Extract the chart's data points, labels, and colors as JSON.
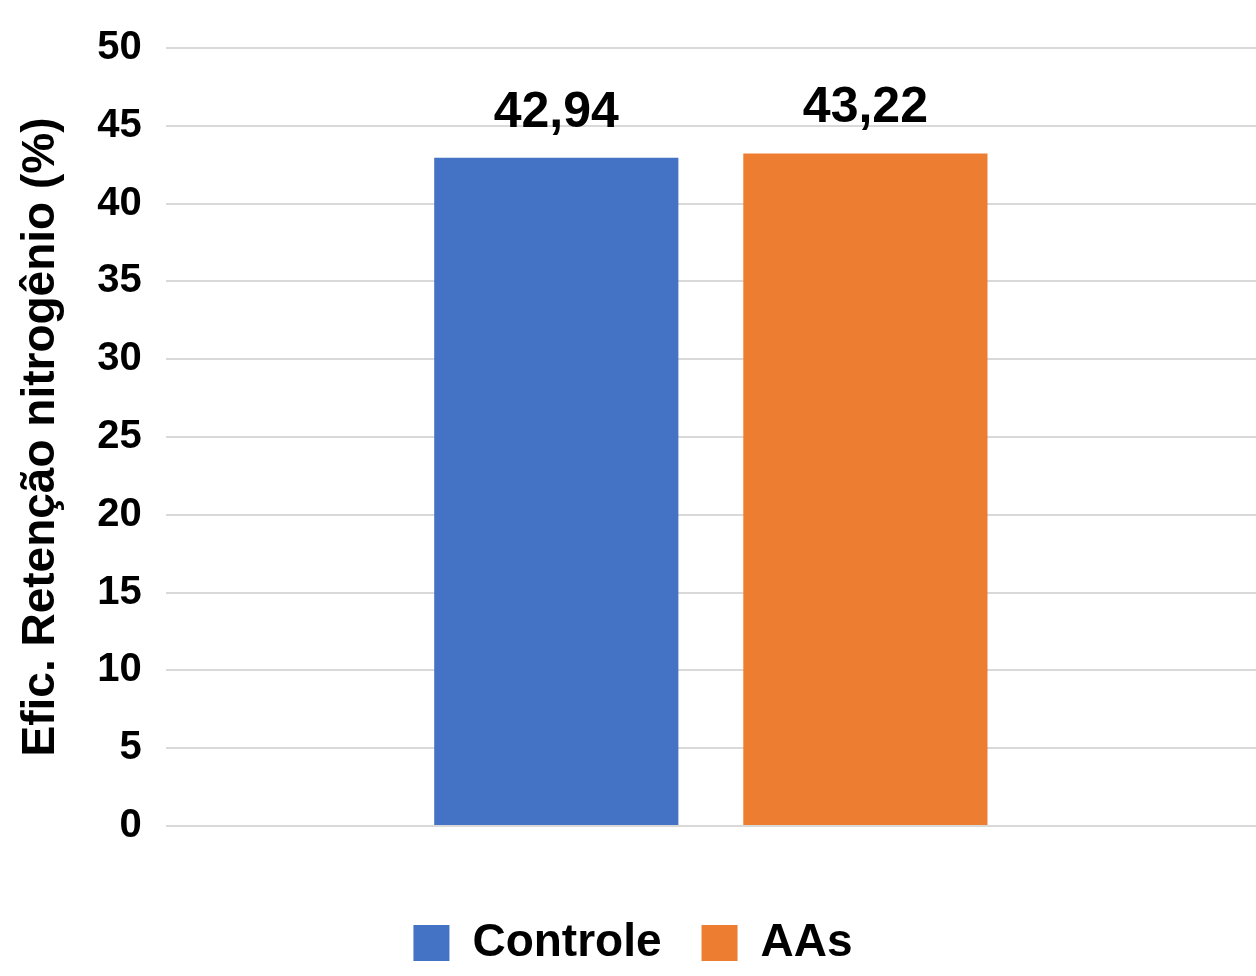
{
  "chart_data": {
    "type": "bar",
    "ylabel": "Efic. Retenção nitrogênio (%)",
    "categories": [
      null
    ],
    "series": [
      {
        "name": "Controle",
        "color": "#4472c4",
        "values": [
          42.94
        ],
        "value_labels": [
          "42,94"
        ]
      },
      {
        "name": "AAs",
        "color": "#ed7d31",
        "values": [
          43.22
        ],
        "value_labels": [
          "43,22"
        ]
      }
    ],
    "ylim": [
      0,
      50
    ],
    "yticks": [
      0,
      5,
      10,
      15,
      20,
      25,
      30,
      35,
      40,
      45,
      50
    ],
    "grid": "y",
    "legend": "bottom"
  }
}
